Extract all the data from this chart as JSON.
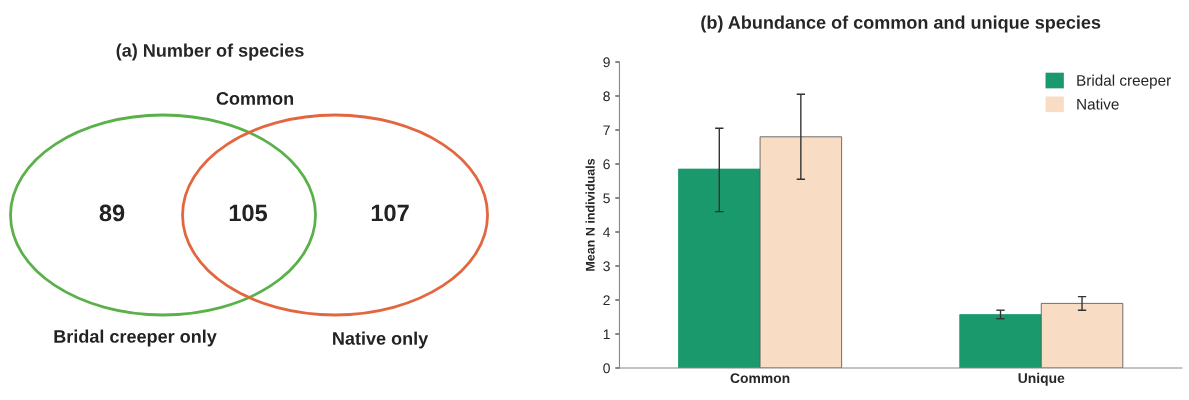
{
  "chart_data": [
    {
      "type": "other",
      "title": "(a) Number of species",
      "categories": [
        "Bridal creeper only",
        "Common",
        "Native only"
      ],
      "values": [
        89,
        105,
        107
      ],
      "data_labels": true
    },
    {
      "type": "bar",
      "title": "(b) Abundance of common and unique species",
      "ylabel": "Mean N individuals",
      "categories": [
        "Common",
        "Unique"
      ],
      "series": [
        {
          "name": "Bridal creeper",
          "color": "#1a9a6c",
          "values": [
            5.85,
            1.57
          ],
          "errors": [
            [
              4.6,
              7.05
            ],
            [
              1.45,
              1.7
            ]
          ]
        },
        {
          "name": "Native",
          "color": "#f9dcc4",
          "values": [
            6.8,
            1.9
          ],
          "errors": [
            [
              5.55,
              8.05
            ],
            [
              1.7,
              2.1
            ]
          ]
        }
      ],
      "ylim": [
        0,
        9
      ],
      "yticks": [
        0,
        1,
        2,
        3,
        4,
        5,
        6,
        7,
        8,
        9
      ],
      "grid": false,
      "legend": "top right"
    }
  ]
}
